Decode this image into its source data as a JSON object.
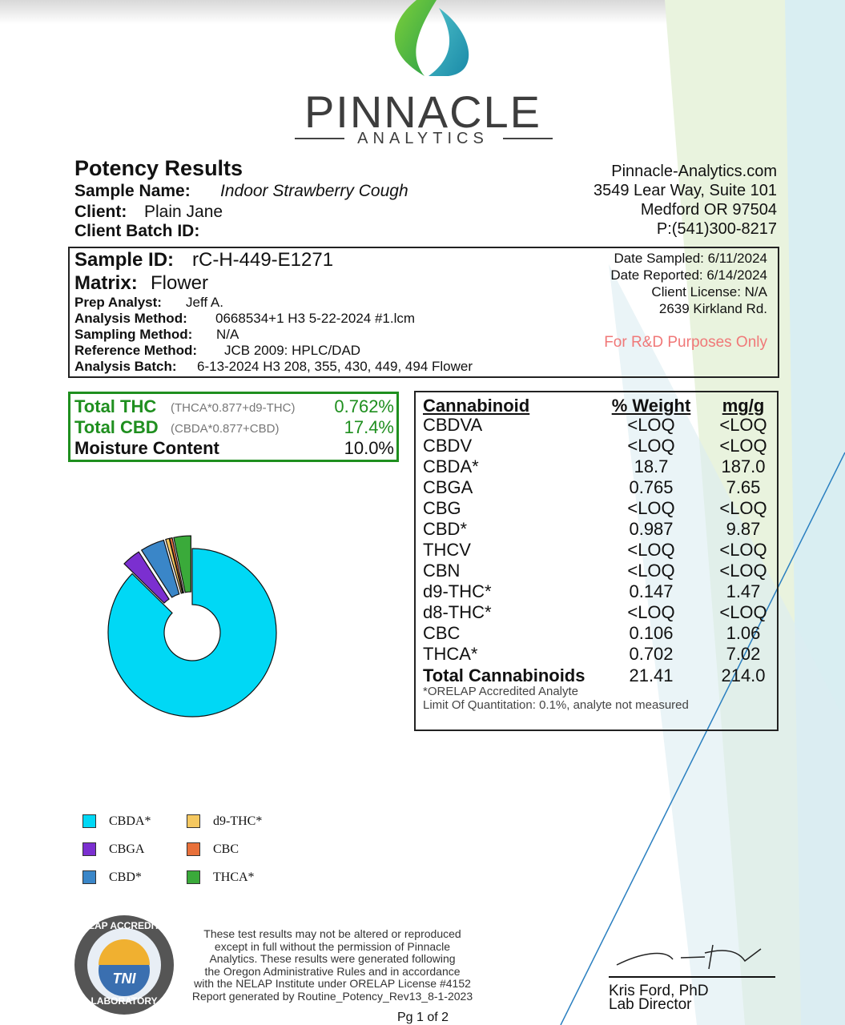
{
  "logo": {
    "name": "PINNACLE",
    "sub": "ANALYTICS"
  },
  "header": {
    "title": "Potency Results",
    "sample_name_label": "Sample Name:",
    "sample_name": "Indoor Strawberry Cough",
    "client_label": "Client:",
    "client": "Plain Jane",
    "batch_label": "Client Batch ID:"
  },
  "company": [
    "Pinnacle-Analytics.com",
    "3549 Lear Way, Suite 101",
    "Medford OR 97504",
    "P:(541)300-8217"
  ],
  "sample": {
    "id_label": "Sample ID:",
    "id": "rC-H-449-E1271",
    "matrix_label": "Matrix:",
    "matrix": "Flower",
    "fields": [
      {
        "label": "Prep Analyst:",
        "value": "Jeff A."
      },
      {
        "label": "Analysis Method:",
        "value": "0668534+1 H3 5-22-2024 #1.lcm"
      },
      {
        "label": "Sampling Method:",
        "value": "N/A"
      },
      {
        "label": "Reference Method:",
        "value": "JCB 2009: HPLC/DAD"
      },
      {
        "label": "Analysis Batch:",
        "value": "6-13-2024 H3 208, 355, 430, 449, 494 Flower"
      }
    ],
    "right": [
      "Date Sampled:  6/11/2024",
      "Date Reported: 6/14/2024",
      "Client License: N/A",
      "2639 Kirkland Rd."
    ],
    "note": "For R&D Purposes Only"
  },
  "summary": [
    {
      "label": "Total THC",
      "formula": "(THCA*0.877+d9-THC)",
      "value": "0.762%"
    },
    {
      "label": "Total CBD",
      "formula": "(CBDA*0.877+CBD)",
      "value": "17.4%"
    },
    {
      "label": "Moisture Content",
      "value": "10.0%"
    }
  ],
  "table": {
    "headers": [
      "Cannabinoid",
      "% Weight",
      "mg/g"
    ],
    "rows": [
      [
        "CBDVA",
        "<LOQ",
        "<LOQ"
      ],
      [
        "CBDV",
        "<LOQ",
        "<LOQ"
      ],
      [
        "CBDA*",
        18.7,
        "187.0"
      ],
      [
        "CBGA",
        0.765,
        "7.65"
      ],
      [
        "CBG",
        "<LOQ",
        "<LOQ"
      ],
      [
        "CBD*",
        0.987,
        "9.87"
      ],
      [
        "THCV",
        "<LOQ",
        "<LOQ"
      ],
      [
        "CBN",
        "<LOQ",
        "<LOQ"
      ],
      [
        "d9-THC*",
        0.147,
        "1.47"
      ],
      [
        "d8-THC*",
        "<LOQ",
        "<LOQ"
      ],
      [
        "CBC",
        0.106,
        "1.06"
      ],
      [
        "THCA*",
        0.702,
        "7.02"
      ]
    ],
    "total": [
      "Total Cannabinoids",
      21.41,
      "214.0"
    ],
    "footnotes": [
      "*ORELAP Accredited Analyte",
      "Limit Of Quantitation: 0.1%, analyte not measured"
    ]
  },
  "legend": [
    {
      "label": "CBDA*",
      "color": "#00d8f5"
    },
    {
      "label": "CBGA",
      "color": "#7b2fd0"
    },
    {
      "label": "CBD*",
      "color": "#3a86c8"
    },
    {
      "label": "d9-THC*",
      "color": "#f5c860"
    },
    {
      "label": "CBC",
      "color": "#e8703a"
    },
    {
      "label": "THCA*",
      "color": "#3aaa3a"
    }
  ],
  "badge": {
    "top": "NELAP ACCREDITED",
    "center": "TNI",
    "bottom": "LABORATORY"
  },
  "disclaimer": [
    "These test results may not be altered or reproduced",
    "except in full without the permission of Pinnacle",
    "Analytics. These results were generated following",
    "the Oregon Administrative Rules and in accordance",
    "with the NELAP Institute under ORELAP License #4152",
    "Report generated by Routine_Potency_Rev13_8-1-2023"
  ],
  "signer": {
    "name": "Kris Ford, PhD",
    "title": "Lab Director"
  },
  "page": "Pg 1 of 2"
}
